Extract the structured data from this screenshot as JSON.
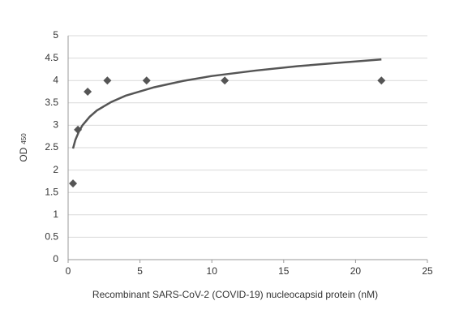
{
  "chart_data": {
    "type": "scatter",
    "x_label": "Recombinant SARS-CoV-2 (COVID-19) nucleocapsid protein (nM)",
    "y_label": "OD",
    "y_label_subscript": "450",
    "x": [
      0.34,
      0.68,
      1.36,
      2.73,
      5.46,
      10.9,
      21.8
    ],
    "values": [
      1.7,
      2.9,
      3.75,
      4.0,
      4.0,
      4.0,
      4.0
    ],
    "color": "#555555",
    "trendline": {
      "color": "#555555",
      "x": [
        0.34,
        0.5,
        0.75,
        1,
        1.5,
        2,
        3,
        4,
        6,
        8,
        10,
        13,
        16,
        19,
        21.8
      ],
      "values": [
        2.48,
        2.67,
        2.86,
        3.0,
        3.19,
        3.33,
        3.52,
        3.66,
        3.85,
        3.99,
        4.1,
        4.22,
        4.32,
        4.4,
        4.47
      ]
    },
    "xlim": [
      0,
      25
    ],
    "xticks": [
      0,
      5,
      10,
      15,
      20,
      25
    ],
    "ylim": [
      0,
      5
    ],
    "yticks": [
      0,
      0.5,
      1,
      1.5,
      2,
      2.5,
      3,
      3.5,
      4,
      4.5,
      5
    ],
    "grid": true
  }
}
